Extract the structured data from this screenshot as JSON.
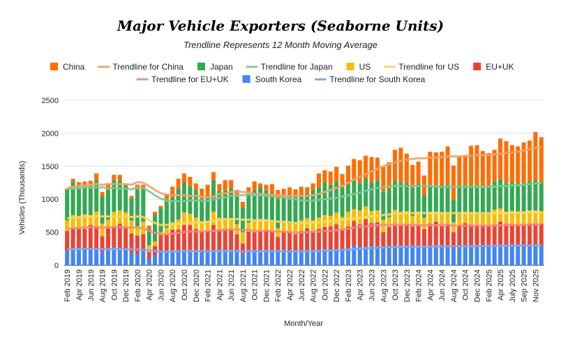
{
  "chart_data": {
    "type": "bar",
    "stacked": true,
    "title": "Major Vehicle Exporters (Seaborne Units)",
    "subtitle": "Trendline Represents 12 Month Moving Average",
    "xlabel": "Month/Year",
    "ylabel": "Vehicles (Thousands)",
    "ylim": [
      0,
      2500
    ],
    "yticks": [
      0,
      500,
      1000,
      1500,
      2000,
      2500
    ],
    "grid": true,
    "legend_position": "top",
    "categories": [
      "Feb 2019",
      "Mar 2019",
      "Apr 2019",
      "May 2019",
      "Jun 2019",
      "Jul 2019",
      "Aug 2019",
      "Sep 2019",
      "Oct 2019",
      "Nov 2019",
      "Dec 2019",
      "Jan 2020",
      "Feb 2020",
      "Mar 2020",
      "Apr 2020",
      "May 2020",
      "Jun 2020",
      "Jul 2020",
      "Aug 2020",
      "Sep 2020",
      "Oct 2020",
      "Nov 2020",
      "Dec 2020",
      "Jan 2021",
      "Feb 2021",
      "Mar 2021",
      "Apr 2021",
      "May 2021",
      "Jun 2021",
      "Jul 2021",
      "Aug 2021",
      "Sep 2021",
      "Oct 2021",
      "Nov 2021",
      "Dec 2021",
      "Jan 2022",
      "Feb 2022",
      "Mar 2022",
      "Apr 2022",
      "May 2022",
      "Jun 2022",
      "Jul 2022",
      "Aug 2022",
      "Sep 2022",
      "Oct 2022",
      "Nov 2022",
      "Dec 2022",
      "Jan 2023",
      "Feb 2023",
      "Mar 2023",
      "Apr 2023",
      "May 2023",
      "Jun 2023",
      "Jul 2023",
      "Aug 2023",
      "Sep 2023",
      "Oct 2023",
      "Nov 2023",
      "Dec 2023",
      "Jan 2024",
      "Feb 2024",
      "Mar 2024",
      "Apr 2024",
      "May 2024",
      "Jun 2024",
      "Jul 2024",
      "Aug 2024",
      "Sep 2024",
      "Oct 2024",
      "Nov 2024",
      "Dec 2024",
      "Jan 2025",
      "Feb 2025",
      "Mar 2025",
      "Apr 2025",
      "May 2025",
      "Jun 2025",
      "Jul 2025",
      "Aug 2025",
      "Sep 2025",
      "Oct 2025",
      "Nov 2025"
    ],
    "x_tick_labels": [
      "Feb 2019",
      "Apr 2019",
      "Jun 2019",
      "Aug 2019",
      "Oct 2019",
      "Dec 2019",
      "Feb 2020",
      "Apr 2020",
      "Jun 2020",
      "Aug 2020",
      "Oct 2020",
      "Dec 2020",
      "Feb 2021",
      "Apr 2021",
      "Jun 2021",
      "Aug 2021",
      "Oct 2021",
      "Dec 2021",
      "Feb 2022",
      "Apr 2022",
      "Jun 2022",
      "Aug 2022",
      "Oct 2022",
      "Dec 2022",
      "Feb 2023",
      "Apr 2023",
      "Jun 2023",
      "Aug 2023",
      "Oct 2023",
      "Dec 2023",
      "Feb 2024",
      "Apr 2024",
      "Jun 2024",
      "Aug 2024",
      "Oct 2024",
      "Dec 2024",
      "Feb 2025",
      "Apr 2025",
      "July 2025",
      "Sep 2025",
      "Nov 2025"
    ],
    "series": [
      {
        "name": "South Korea",
        "color": "#4285F4",
        "values": [
          210,
          250,
          260,
          250,
          250,
          240,
          200,
          230,
          270,
          260,
          240,
          190,
          170,
          230,
          100,
          150,
          200,
          200,
          230,
          220,
          230,
          220,
          220,
          210,
          210,
          220,
          220,
          230,
          230,
          210,
          170,
          220,
          200,
          220,
          230,
          220,
          210,
          220,
          200,
          210,
          220,
          200,
          220,
          230,
          240,
          240,
          240,
          240,
          230,
          300,
          270,
          280,
          290,
          280,
          270,
          280,
          290,
          300,
          290,
          290,
          300,
          260,
          300,
          300,
          300,
          290,
          260,
          280,
          300,
          290,
          290,
          300,
          280,
          300,
          310,
          300,
          300,
          300,
          300,
          300,
          310,
          300
        ]
      },
      {
        "name": "EU+UK",
        "color": "#EA4335",
        "values": [
          310,
          320,
          290,
          300,
          360,
          350,
          240,
          330,
          320,
          370,
          330,
          290,
          280,
          240,
          100,
          140,
          260,
          260,
          310,
          320,
          380,
          390,
          330,
          300,
          320,
          390,
          320,
          320,
          320,
          260,
          160,
          290,
          300,
          310,
          310,
          300,
          220,
          300,
          310,
          260,
          300,
          360,
          290,
          320,
          340,
          350,
          380,
          310,
          360,
          370,
          350,
          420,
          350,
          370,
          230,
          300,
          330,
          310,
          330,
          300,
          320,
          290,
          330,
          360,
          320,
          340,
          240,
          330,
          340,
          330,
          320,
          310,
          320,
          320,
          350,
          330,
          320,
          320,
          320,
          330,
          320,
          330
        ]
      },
      {
        "name": "US",
        "color": "#FBBC04",
        "values": [
          160,
          190,
          190,
          220,
          150,
          220,
          190,
          130,
          220,
          200,
          230,
          200,
          140,
          190,
          100,
          70,
          40,
          110,
          110,
          150,
          190,
          170,
          170,
          150,
          140,
          200,
          180,
          150,
          150,
          150,
          170,
          140,
          170,
          170,
          150,
          140,
          130,
          140,
          120,
          160,
          160,
          150,
          170,
          170,
          180,
          160,
          180,
          180,
          220,
          180,
          210,
          190,
          180,
          180,
          190,
          150,
          220,
          200,
          200,
          160,
          190,
          170,
          180,
          150,
          170,
          170,
          150,
          160,
          170,
          170,
          180,
          160,
          180,
          220,
          200,
          180,
          200,
          190,
          190,
          200,
          200,
          190
        ]
      },
      {
        "name": "Japan",
        "color": "#34A853",
        "values": [
          460,
          510,
          480,
          420,
          440,
          480,
          420,
          450,
          480,
          460,
          410,
          330,
          550,
          490,
          250,
          400,
          360,
          420,
          380,
          470,
          450,
          420,
          420,
          350,
          380,
          480,
          410,
          430,
          460,
          420,
          370,
          430,
          470,
          480,
          440,
          410,
          440,
          380,
          420,
          420,
          390,
          370,
          460,
          460,
          490,
          470,
          470,
          450,
          420,
          450,
          410,
          430,
          430,
          460,
          420,
          430,
          440,
          440,
          420,
          420,
          420,
          340,
          410,
          400,
          410,
          420,
          340,
          420,
          400,
          430,
          400,
          400,
          420,
          430,
          440,
          430,
          430,
          430,
          430,
          440,
          460,
          430
        ]
      },
      {
        "name": "China",
        "color": "#FF6D01",
        "values": [
          20,
          40,
          40,
          80,
          80,
          100,
          60,
          100,
          80,
          80,
          20,
          40,
          80,
          70,
          50,
          50,
          40,
          90,
          160,
          150,
          140,
          140,
          100,
          150,
          170,
          120,
          100,
          160,
          130,
          100,
          90,
          100,
          130,
          60,
          90,
          160,
          140,
          120,
          130,
          100,
          120,
          100,
          100,
          210,
          190,
          200,
          220,
          200,
          280,
          310,
          350,
          340,
          390,
          340,
          380,
          400,
          470,
          530,
          450,
          350,
          340,
          300,
          500,
          500,
          520,
          580,
          520,
          460,
          460,
          590,
          630,
          560,
          500,
          480,
          620,
          640,
          570,
          560,
          620,
          620,
          730,
          690
        ]
      }
    ],
    "trendlines": [
      {
        "name": "Trendline for China",
        "color": "#F6A26B",
        "values": [
          1170,
          1190,
          1200,
          1210,
          1220,
          1230,
          1220,
          1230,
          1230,
          1230,
          1230,
          1220,
          1260,
          1250,
          1200,
          1140,
          1090,
          1070,
          1060,
          1060,
          1060,
          1050,
          1050,
          1040,
          1030,
          1040,
          1080,
          1090,
          1110,
          1110,
          1110,
          1100,
          1080,
          1080,
          1070,
          1060,
          1060,
          1060,
          1050,
          1050,
          1050,
          1050,
          1060,
          1080,
          1110,
          1140,
          1170,
          1200,
          1250,
          1300,
          1340,
          1380,
          1420,
          1460,
          1500,
          1530,
          1560,
          1580,
          1600,
          1610,
          1620,
          1620,
          1630,
          1630,
          1640,
          1650,
          1650,
          1650,
          1650,
          1660,
          1670,
          1670,
          1670,
          1680,
          1690,
          1700,
          1710,
          1720,
          1740,
          1760,
          1780,
          1790
        ]
      },
      {
        "name": "Trendline for Japan",
        "color": "#80C995",
        "values": [
          1150,
          1160,
          1170,
          1180,
          1180,
          1180,
          1180,
          1170,
          1170,
          1160,
          1160,
          1150,
          1180,
          1170,
          1120,
          1060,
          1010,
          980,
          970,
          970,
          970,
          980,
          980,
          980,
          980,
          1000,
          1020,
          1030,
          1050,
          1060,
          1060,
          1070,
          1060,
          1060,
          1050,
          1050,
          1040,
          1030,
          1010,
          1000,
          980,
          980,
          980,
          990,
          1000,
          1010,
          1020,
          1040,
          1060,
          1080,
          1100,
          1130,
          1150,
          1170,
          1180,
          1190,
          1200,
          1200,
          1200,
          1200,
          1200,
          1200,
          1200,
          1190,
          1190,
          1190,
          1190,
          1190,
          1190,
          1190,
          1190,
          1190,
          1190,
          1190,
          1200,
          1200,
          1210,
          1210,
          1220,
          1230,
          1240,
          1250
        ]
      },
      {
        "name": "Trendline for US",
        "color": "#FCD866",
        "values": [
          710,
          720,
          730,
          740,
          740,
          740,
          740,
          740,
          740,
          740,
          740,
          730,
          740,
          730,
          680,
          640,
          610,
          610,
          620,
          630,
          640,
          650,
          650,
          650,
          660,
          670,
          690,
          700,
          700,
          700,
          690,
          690,
          680,
          680,
          680,
          670,
          660,
          660,
          650,
          640,
          640,
          640,
          650,
          650,
          660,
          670,
          680,
          690,
          700,
          710,
          720,
          730,
          740,
          750,
          760,
          770,
          780,
          780,
          790,
          790,
          790,
          790,
          790,
          790,
          790,
          790,
          790,
          790,
          790,
          790,
          790,
          790,
          790,
          790,
          790,
          790,
          800,
          800,
          800,
          800,
          800,
          800
        ]
      },
      {
        "name": "Trendline for EU+UK",
        "color": "#F28B82",
        "values": [
          550,
          560,
          565,
          570,
          575,
          575,
          570,
          575,
          575,
          575,
          575,
          570,
          570,
          560,
          520,
          490,
          470,
          470,
          480,
          490,
          500,
          510,
          510,
          510,
          515,
          520,
          530,
          535,
          540,
          540,
          535,
          530,
          520,
          520,
          520,
          510,
          510,
          505,
          500,
          495,
          495,
          500,
          505,
          510,
          515,
          520,
          530,
          540,
          555,
          570,
          580,
          590,
          600,
          605,
          610,
          610,
          610,
          610,
          610,
          610,
          610,
          605,
          605,
          605,
          605,
          605,
          600,
          600,
          600,
          600,
          600,
          600,
          600,
          600,
          605,
          605,
          610,
          610,
          610,
          615,
          620,
          620
        ]
      },
      {
        "name": "Trendline for South Korea",
        "color": "#7BAAF7",
        "values": [
          240,
          242,
          244,
          246,
          246,
          246,
          244,
          244,
          244,
          244,
          243,
          240,
          236,
          232,
          224,
          214,
          208,
          206,
          208,
          210,
          212,
          214,
          214,
          212,
          212,
          214,
          216,
          218,
          218,
          216,
          212,
          212,
          212,
          212,
          212,
          212,
          212,
          212,
          212,
          212,
          212,
          212,
          214,
          216,
          220,
          224,
          228,
          232,
          238,
          244,
          250,
          256,
          262,
          266,
          270,
          274,
          278,
          280,
          282,
          282,
          282,
          282,
          284,
          286,
          286,
          288,
          288,
          288,
          288,
          290,
          290,
          292,
          292,
          294,
          296,
          298,
          298,
          300,
          300,
          300,
          302,
          302
        ]
      }
    ]
  },
  "legend": {
    "row1": [
      "China",
      "Trendline for China",
      "Japan",
      "Trendline for Japan",
      "US",
      "Trendline for US",
      "EU+UK"
    ],
    "row2": [
      "Trendline for EU+UK",
      "South Korea",
      "Trendline for South Korea"
    ]
  }
}
